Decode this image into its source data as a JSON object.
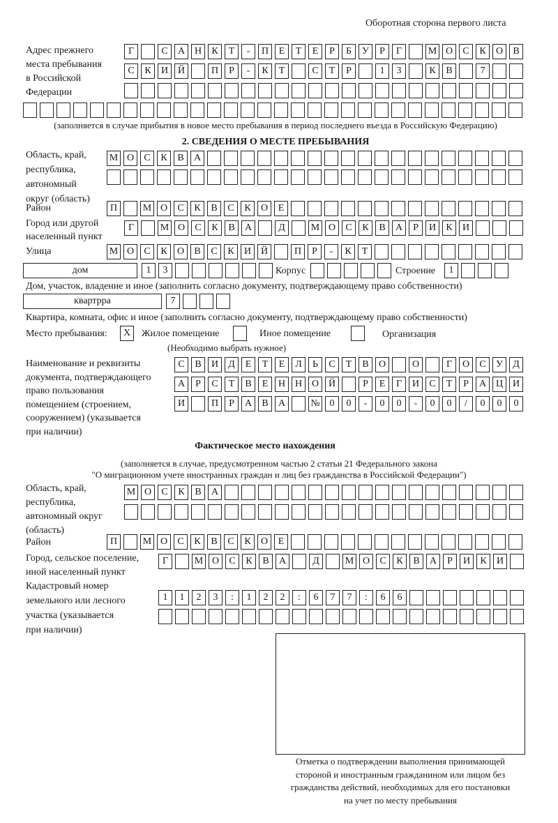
{
  "header": "Оборотная сторона первого листа",
  "prev_address": {
    "label": [
      "Адрес прежнего",
      "места пребывания",
      "в Российской",
      "Федерации"
    ],
    "rows": [
      [
        "Г",
        "",
        "С",
        "А",
        "Н",
        "К",
        "Т",
        "-",
        "П",
        "Е",
        "Т",
        "Е",
        "Р",
        "Б",
        "У",
        "Р",
        "Г",
        "",
        "М",
        "О",
        "С",
        "К",
        "О",
        "В"
      ],
      [
        "С",
        "К",
        "И",
        "Й",
        "",
        "П",
        "Р",
        "-",
        "К",
        "Т",
        "",
        "С",
        "Т",
        "Р",
        "",
        "1",
        "3",
        "",
        "К",
        "В",
        "",
        "7",
        "",
        ""
      ],
      [
        "",
        "",
        "",
        "",
        "",
        "",
        "",
        "",
        "",
        "",
        "",
        "",
        "",
        "",
        "",
        "",
        "",
        "",
        "",
        "",
        "",
        "",
        "",
        ""
      ],
      [
        "",
        "",
        "",
        "",
        "",
        "",
        "",
        "",
        "",
        "",
        "",
        "",
        "",
        "",
        "",
        "",
        "",
        "",
        "",
        "",
        "",
        "",
        "",
        "",
        "",
        "",
        "",
        "",
        "",
        ""
      ]
    ],
    "note": "(заполняется в случае прибытия в новое место пребывания в период последнего въезда в Российскую Федерацию)"
  },
  "section2": {
    "title": "2. СВЕДЕНИЯ О МЕСТЕ ПРЕБЫВАНИЯ",
    "region_label": [
      "Область, край,",
      "республика,",
      "автономный",
      "округ (область)"
    ],
    "region_rows": [
      [
        "М",
        "О",
        "С",
        "К",
        "В",
        "А",
        "",
        "",
        "",
        "",
        "",
        "",
        "",
        "",
        "",
        "",
        "",
        "",
        "",
        "",
        "",
        "",
        "",
        "",
        ""
      ],
      [
        "",
        "",
        "",
        "",
        "",
        "",
        "",
        "",
        "",
        "",
        "",
        "",
        "",
        "",
        "",
        "",
        "",
        "",
        "",
        "",
        "",
        "",
        "",
        "",
        ""
      ]
    ],
    "district_label": "Район",
    "district_row": [
      "П",
      "",
      "М",
      "О",
      "С",
      "К",
      "В",
      "С",
      "К",
      "О",
      "Е",
      "",
      "",
      "",
      "",
      "",
      "",
      "",
      "",
      "",
      "",
      "",
      "",
      "",
      ""
    ],
    "city_label": [
      "Город или другой",
      "населенный пункт"
    ],
    "city_row": [
      "Г",
      "",
      "М",
      "О",
      "С",
      "К",
      "В",
      "А",
      "",
      "Д",
      "",
      "М",
      "О",
      "С",
      "К",
      "В",
      "А",
      "Р",
      "И",
      "К",
      "И",
      "",
      "",
      ""
    ],
    "street_label": "Улица",
    "street_row": [
      "М",
      "О",
      "С",
      "К",
      "О",
      "В",
      "С",
      "К",
      "И",
      "Й",
      "",
      "П",
      "Р",
      "-",
      "К",
      "Т",
      "",
      "",
      "",
      "",
      "",
      "",
      "",
      "",
      ""
    ],
    "house_type": "дом",
    "house_row": [
      "1",
      "3",
      "",
      "",
      "",
      "",
      "",
      ""
    ],
    "korpus_label": "Корпус",
    "korpus_row": [
      "",
      "",
      "",
      "",
      ""
    ],
    "building_label": "Строение",
    "building_row": [
      "1",
      "",
      "",
      ""
    ],
    "house_note": "Дом, участок, владение и иное (заполнить согласно документу, подтверждающему право собственности)",
    "flat_type": "квартрра",
    "flat_row": [
      "7",
      "",
      "",
      ""
    ],
    "flat_note": "Квартира, комната, офис и иное (заполнить согласно документу, подтверждающему право собственности)",
    "stay_label": "Место пребывания:",
    "stay_options": [
      {
        "label": "Жилое помещение",
        "mark": "X"
      },
      {
        "label": "Иное помещение",
        "mark": ""
      },
      {
        "label": "Организация",
        "mark": ""
      }
    ],
    "stay_note": "(Необходимо выбрать нужное)",
    "doc_label": [
      "Наименование и реквизиты",
      "документа, подтверждающего",
      "право пользования",
      "помещением (строением,",
      "сооружением) (указывается",
      "при наличии)"
    ],
    "doc_rows": [
      [
        "С",
        "В",
        "И",
        "Д",
        "Е",
        "Т",
        "Е",
        "Л",
        "Ь",
        "С",
        "Т",
        "В",
        "О",
        "",
        "О",
        "",
        "Г",
        "О",
        "С",
        "У",
        "Д"
      ],
      [
        "А",
        "Р",
        "С",
        "Т",
        "В",
        "Е",
        "Н",
        "Н",
        "О",
        "Й",
        "",
        "Р",
        "Е",
        "Г",
        "И",
        "С",
        "Т",
        "Р",
        "А",
        "Ц",
        "И"
      ],
      [
        "И",
        "",
        "П",
        "Р",
        "А",
        "В",
        "А",
        "",
        "№",
        "0",
        "0",
        "-",
        "0",
        "0",
        "-",
        "0",
        "0",
        "/",
        "0",
        "0",
        "0"
      ]
    ]
  },
  "actual": {
    "title": "Фактическое место нахождения",
    "subtitle": [
      "(заполняется в случае, предусмотренном частью 2 статьи 21 Федерального закона",
      "\"О миграционном учете иностранных граждан и лиц без гражданства в Российской Федерации\")"
    ],
    "region_label": [
      "Область, край,",
      "республика,",
      "автономный округ",
      "(область)"
    ],
    "region_rows": [
      [
        "М",
        "О",
        "С",
        "К",
        "В",
        "А",
        "",
        "",
        "",
        "",
        "",
        "",
        "",
        "",
        "",
        "",
        "",
        "",
        "",
        "",
        "",
        "",
        "",
        ""
      ],
      [
        "",
        "",
        "",
        "",
        "",
        "",
        "",
        "",
        "",
        "",
        "",
        "",
        "",
        "",
        "",
        "",
        "",
        "",
        "",
        "",
        "",
        "",
        "",
        ""
      ]
    ],
    "district_label": "Район",
    "district_row": [
      "П",
      "",
      "М",
      "О",
      "С",
      "К",
      "В",
      "С",
      "К",
      "О",
      "Е",
      "",
      "",
      "",
      "",
      "",
      "",
      "",
      "",
      "",
      "",
      "",
      "",
      "",
      ""
    ],
    "city_label": [
      "Город, сельское поселение,",
      "иной населенный пункт"
    ],
    "city_row": [
      "Г",
      "",
      "М",
      "О",
      "С",
      "К",
      "В",
      "А",
      "",
      "Д",
      "",
      "М",
      "О",
      "С",
      "К",
      "В",
      "А",
      "Р",
      "И",
      "К",
      "И",
      ""
    ],
    "cadastral_label": [
      "Кадастровый номер",
      "земельного или лесного",
      "участка (указывается",
      "при наличии)"
    ],
    "cadastral_rows": [
      [
        "1",
        "1",
        "2",
        "3",
        ":",
        "1",
        "2",
        "2",
        ":",
        "6",
        "7",
        "7",
        ":",
        "6",
        "6",
        "",
        "",
        "",
        "",
        "",
        "",
        ""
      ],
      [
        "",
        "",
        "",
        "",
        "",
        "",
        "",
        "",
        "",
        "",
        "",
        "",
        "",
        "",
        "",
        "",
        "",
        "",
        "",
        "",
        "",
        ""
      ]
    ]
  },
  "stamp_caption": [
    "Отметка о подтверждении выполнения принимающей",
    "стороной и иностранным гражданином или лицом без",
    "гражданства действий, необходимых для его постановки",
    "на учет по месту пребывания"
  ]
}
